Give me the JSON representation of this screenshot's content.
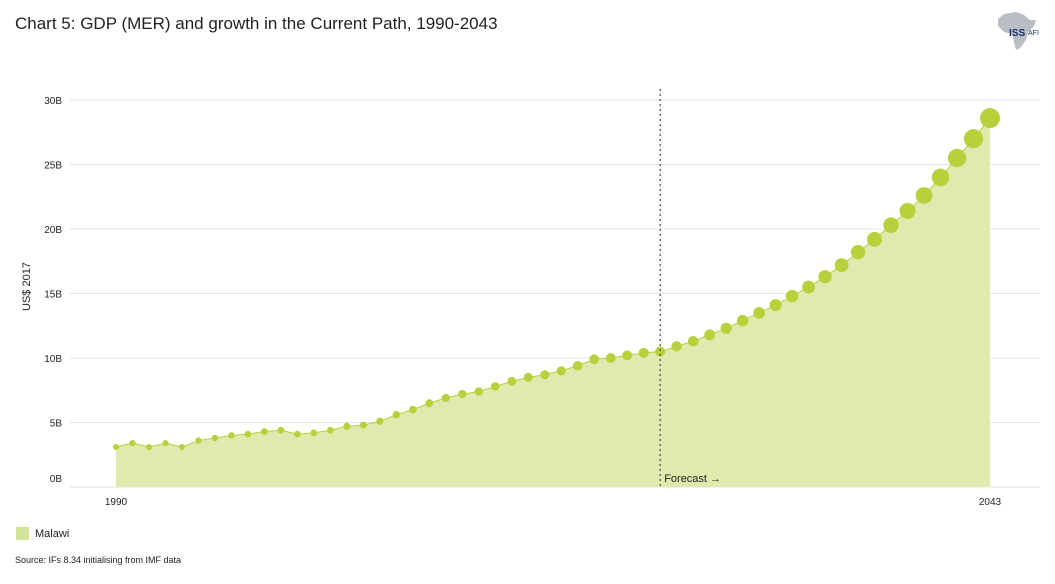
{
  "title": "Chart 5: GDP (MER) and growth in the Current Path, 1990-2043",
  "source": "Source: IFs 8.34 initialising from IMF data",
  "logo": {
    "text": "ISS",
    "subtext": "AFI",
    "icon": "africa-map-icon"
  },
  "colors": {
    "area": "#dfeaae",
    "marker": "#b7d03b",
    "line": "#b7d03b",
    "grid": "#e3e3e3"
  },
  "chart_data": {
    "type": "area",
    "title": "Chart 5: GDP (MER) and growth in the Current Path, 1990-2043",
    "ylabel": "US$ 2017",
    "xlabel": "",
    "ylim": [
      0,
      30
    ],
    "yticks": [
      "0B",
      "5B",
      "10B",
      "15B",
      "20B",
      "25B",
      "30B"
    ],
    "xticks": [
      "1990",
      "2043"
    ],
    "forecast_year": 2023,
    "forecast_label": "Forecast →",
    "grid": true,
    "legend_position": "bottom-left",
    "series": [
      {
        "name": "Malawi",
        "x": [
          1990,
          1991,
          1992,
          1993,
          1994,
          1995,
          1996,
          1997,
          1998,
          1999,
          2000,
          2001,
          2002,
          2003,
          2004,
          2005,
          2006,
          2007,
          2008,
          2009,
          2010,
          2011,
          2012,
          2013,
          2014,
          2015,
          2016,
          2017,
          2018,
          2019,
          2020,
          2021,
          2022,
          2023,
          2024,
          2025,
          2026,
          2027,
          2028,
          2029,
          2030,
          2031,
          2032,
          2033,
          2034,
          2035,
          2036,
          2037,
          2038,
          2039,
          2040,
          2041,
          2042,
          2043
        ],
        "values": [
          3.1,
          3.4,
          3.1,
          3.4,
          3.1,
          3.6,
          3.8,
          4.0,
          4.1,
          4.3,
          4.4,
          4.1,
          4.2,
          4.4,
          4.7,
          4.8,
          5.1,
          5.6,
          6.0,
          6.5,
          6.9,
          7.2,
          7.4,
          7.8,
          8.2,
          8.5,
          8.7,
          9.0,
          9.4,
          9.9,
          10.0,
          10.2,
          10.4,
          10.5,
          10.9,
          11.3,
          11.8,
          12.3,
          12.9,
          13.5,
          14.1,
          14.8,
          15.5,
          16.3,
          17.2,
          18.2,
          19.2,
          20.3,
          21.4,
          22.6,
          24.0,
          25.5,
          27.0,
          28.6
        ]
      }
    ]
  }
}
